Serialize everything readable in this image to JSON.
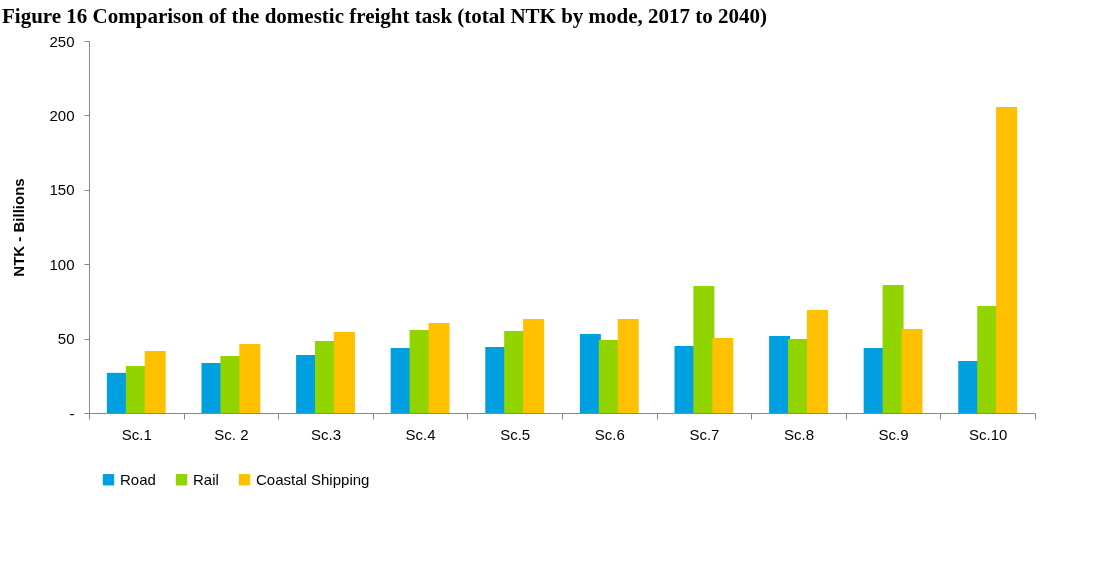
{
  "chart_data": {
    "type": "bar",
    "title": "Figure 16 Comparison of the domestic freight task (total NTK by mode, 2017 to 2040)",
    "ylabel": "NTK - Billions",
    "categories": [
      "Sc.1",
      "Sc. 2",
      "Sc.3",
      "Sc.4",
      "Sc.5",
      "Sc.6",
      "Sc.7",
      "Sc.8",
      "Sc.9",
      "Sc.10"
    ],
    "series": [
      {
        "name": "Road",
        "color": "#00a0e0",
        "values": [
          27,
          33.6,
          39,
          43.7,
          44.4,
          53.1,
          45,
          51.7,
          43.7,
          35
        ]
      },
      {
        "name": "Rail",
        "color": "#92d400",
        "values": [
          31.6,
          38.3,
          48.4,
          55.8,
          55.1,
          49,
          85.3,
          49.7,
          86,
          71.9
        ]
      },
      {
        "name": "Coastal Shipping",
        "color": "#ffc000",
        "values": [
          41.7,
          46.4,
          54.4,
          60.5,
          63.2,
          63.2,
          50.4,
          69.2,
          56.5,
          205.6
        ]
      }
    ],
    "ylim": [
      0,
      250
    ],
    "yticks": [
      {
        "value": 0,
        "label": "-"
      },
      50,
      100,
      150,
      200,
      250
    ],
    "grid": false,
    "legend": "bottom"
  }
}
